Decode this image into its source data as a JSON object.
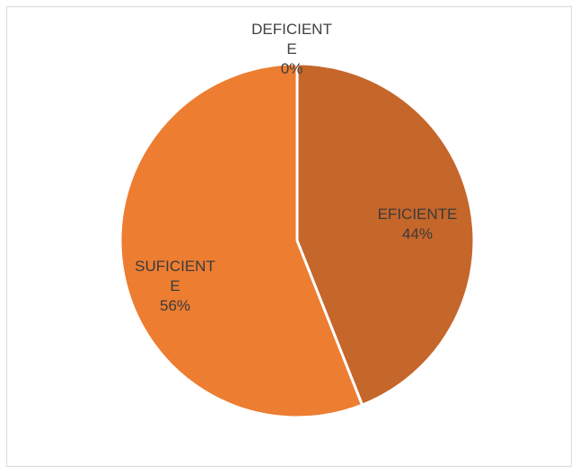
{
  "chart_data": {
    "type": "pie",
    "slices": [
      {
        "name": "DEFICIENTE",
        "label": "DEFICIENT\nE\n0%",
        "value": 0,
        "color": "#c0652a"
      },
      {
        "name": "EFICIENTE",
        "label": "EFICIENTE\n44%",
        "value": 44,
        "color": "#c5662a"
      },
      {
        "name": "SUFICIENTE",
        "label": "SUFICIENT\nE\n56%",
        "value": 56,
        "color": "#ed7d31"
      }
    ],
    "start_angle_deg": 0,
    "direction": "clockwise",
    "slice_border_color": "#ffffff",
    "legend": "none"
  }
}
